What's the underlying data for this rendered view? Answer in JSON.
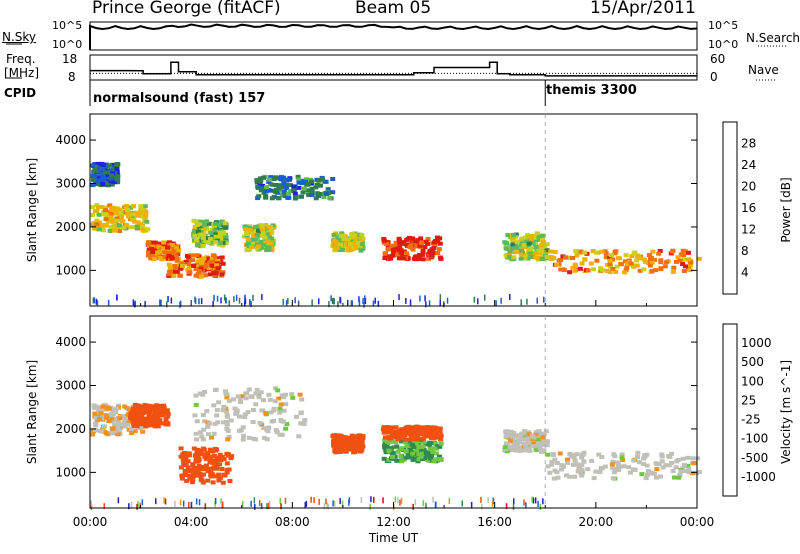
{
  "header": {
    "station": "Prince George (fitACF)",
    "beam": "Beam 05",
    "date": "15/Apr/2011"
  },
  "panels": {
    "nsky": {
      "label": "N.Sky",
      "ticks": [
        "10^5",
        "10^0"
      ],
      "right_label": "N.Search",
      "right_ticks": [
        "10^5",
        "10^0"
      ]
    },
    "freq": {
      "label_line1": "Freq.",
      "label_line2": "[MHz]",
      "ticks": [
        "18",
        "8"
      ],
      "right_label": "Nave",
      "right_ticks": [
        "60",
        "0"
      ]
    },
    "cpid": {
      "label": "CPID",
      "modes": [
        {
          "name": "normalsound (fast) 157",
          "start_hour": 0.0
        },
        {
          "name": "themis 3300",
          "start_hour": 18.0
        }
      ]
    }
  },
  "colors": {
    "power_scale": [
      "#2020e0",
      "#1a5ec8",
      "#2e7d4a",
      "#5db85b",
      "#c8d020",
      "#f0b000",
      "#f07010",
      "#e01a10"
    ],
    "velocity_scale": [
      "#d01010",
      "#f05010",
      "#f09020",
      "#c0c0b8",
      "#c0c0b8",
      "#70c840",
      "#2e8a50",
      "#1a5ec8",
      "#2020c0"
    ]
  },
  "chart_data": [
    {
      "type": "heatmap",
      "title": "",
      "xlabel": "Time UT",
      "ylabel": "Slant Range [km]",
      "ylim": [
        180,
        4600
      ],
      "xlim_hours": [
        0,
        24
      ],
      "x_tick_labels": [
        "00:00",
        "04:00",
        "08:00",
        "12:00",
        "16:00",
        "20:00",
        "00:00"
      ],
      "y_ticks": [
        1000,
        2000,
        3000,
        4000
      ],
      "colorbar": {
        "label": "Power [dB]",
        "ticks": [
          "4",
          "8",
          "12",
          "16",
          "20",
          "24",
          "28"
        ],
        "range": [
          0,
          30
        ]
      },
      "regions": [
        {
          "t": [
            0.0,
            2.2
          ],
          "r": [
            1950,
            2550
          ],
          "level": 19
        },
        {
          "t": [
            2.2,
            3.4
          ],
          "r": [
            1300,
            1700
          ],
          "level": 24
        },
        {
          "t": [
            3.0,
            5.2
          ],
          "r": [
            900,
            1400
          ],
          "level": 25
        },
        {
          "t": [
            4.0,
            5.3
          ],
          "r": [
            1600,
            2200
          ],
          "level": 14
        },
        {
          "t": [
            6.0,
            7.2
          ],
          "r": [
            1500,
            2100
          ],
          "level": 16
        },
        {
          "t": [
            9.5,
            10.7
          ],
          "r": [
            1500,
            1900
          ],
          "level": 17
        },
        {
          "t": [
            11.5,
            13.8
          ],
          "r": [
            1300,
            1800
          ],
          "level": 28
        },
        {
          "t": [
            16.3,
            18.0
          ],
          "r": [
            1300,
            1900
          ],
          "level": 16
        },
        {
          "t": [
            18.0,
            24.0
          ],
          "r": [
            1000,
            1500
          ],
          "level": 22
        },
        {
          "t": [
            6.5,
            9.5
          ],
          "r": [
            2700,
            3200
          ],
          "level": 8
        },
        {
          "t": [
            0.0,
            1.0
          ],
          "r": [
            3000,
            3500
          ],
          "level": 6
        }
      ]
    },
    {
      "type": "heatmap",
      "title": "",
      "xlabel": "Time UT",
      "ylabel": "Slant Range [km]",
      "ylim": [
        180,
        4600
      ],
      "xlim_hours": [
        0,
        24
      ],
      "x_tick_labels": [
        "00:00",
        "04:00",
        "08:00",
        "12:00",
        "16:00",
        "20:00",
        "00:00"
      ],
      "y_ticks": [
        1000,
        2000,
        3000,
        4000
      ],
      "colorbar": {
        "label": "Velocity [m s^-1]",
        "ticks": [
          "1000",
          "500",
          "100",
          "25",
          "-25",
          "-100",
          "-500",
          "-1000"
        ]
      },
      "regions": [
        {
          "t": [
            0.0,
            2.0
          ],
          "r": [
            1900,
            2600
          ],
          "level": -25
        },
        {
          "t": [
            1.5,
            3.0
          ],
          "r": [
            2100,
            2600
          ],
          "level": -300
        },
        {
          "t": [
            3.5,
            5.5
          ],
          "r": [
            800,
            1600
          ],
          "level": -400
        },
        {
          "t": [
            4.0,
            8.5
          ],
          "r": [
            1800,
            3000
          ],
          "level": 0
        },
        {
          "t": [
            9.5,
            10.7
          ],
          "r": [
            1500,
            1900
          ],
          "level": -200
        },
        {
          "t": [
            11.5,
            13.8
          ],
          "r": [
            1300,
            1800
          ],
          "level": 100
        },
        {
          "t": [
            11.5,
            13.8
          ],
          "r": [
            1800,
            2100
          ],
          "level": -300
        },
        {
          "t": [
            16.3,
            18.0
          ],
          "r": [
            1500,
            2000
          ],
          "level": 0
        },
        {
          "t": [
            18.0,
            24.0
          ],
          "r": [
            900,
            1500
          ],
          "level": 0
        }
      ]
    }
  ]
}
